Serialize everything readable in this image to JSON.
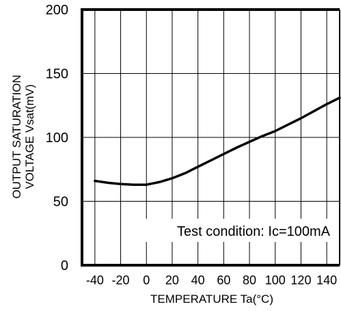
{
  "chart_data": {
    "type": "line",
    "title": "",
    "xlabel": "TEMPERATURE Ta(°C)",
    "ylabel_line1": "OUTPUT SATURATION",
    "ylabel_line2": "VOLTAGE Vsat(mV)",
    "xlim": [
      -50,
      150
    ],
    "ylim": [
      0,
      200
    ],
    "x_ticks": [
      -40,
      -20,
      0,
      20,
      40,
      60,
      80,
      100,
      120,
      140
    ],
    "x_tick_labels": [
      "-40",
      "-20",
      "0",
      "20",
      "40",
      "60",
      "80",
      "100",
      "120",
      "140"
    ],
    "y_ticks": [
      0,
      50,
      100,
      150,
      200
    ],
    "y_tick_labels": [
      "0",
      "50",
      "100",
      "150",
      "200"
    ],
    "grid": true,
    "annotation": "Test condition: Ic=100mA",
    "series": [
      {
        "x": [
          -40,
          -30,
          -20,
          -10,
          0,
          10,
          20,
          30,
          40,
          50,
          60,
          70,
          80,
          90,
          100,
          110,
          120,
          130,
          140,
          150
        ],
        "values": [
          66,
          64.5,
          63.5,
          63,
          63,
          65,
          68,
          72,
          77,
          82,
          87,
          92,
          96.5,
          101,
          105,
          110,
          115,
          120.5,
          126,
          131
        ]
      }
    ],
    "colors": {
      "line": "#000000",
      "grid": "#000000",
      "frame": "#000000"
    }
  }
}
